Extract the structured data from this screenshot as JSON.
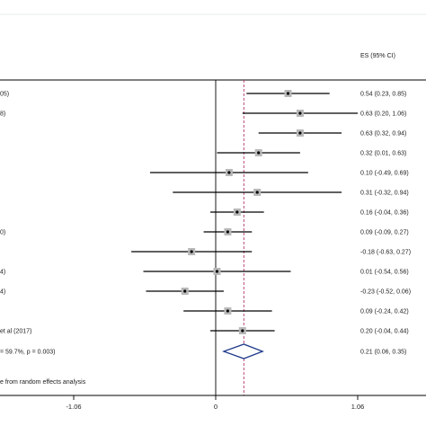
{
  "chart_data": {
    "type": "forest",
    "column_header": "ES (95% CI)",
    "studies": [
      {
        "label": "05)",
        "es": 0.54,
        "lo": 0.23,
        "hi": 0.85,
        "ci_text": "0.54 (0.23, 0.85)"
      },
      {
        "label": "8)",
        "es": 0.63,
        "lo": 0.2,
        "hi": 1.06,
        "ci_text": "0.63 (0.20, 1.06)"
      },
      {
        "label": "",
        "es": 0.63,
        "lo": 0.32,
        "hi": 0.94,
        "ci_text": "0.63 (0.32, 0.94)"
      },
      {
        "label": "",
        "es": 0.32,
        "lo": 0.01,
        "hi": 0.63,
        "ci_text": "0.32 (0.01, 0.63)"
      },
      {
        "label": "",
        "es": 0.1,
        "lo": -0.49,
        "hi": 0.69,
        "ci_text": "0.10 (-0.49, 0.69)"
      },
      {
        "label": "",
        "es": 0.31,
        "lo": -0.32,
        "hi": 0.94,
        "ci_text": "0.31 (-0.32, 0.94)"
      },
      {
        "label": "",
        "es": 0.16,
        "lo": -0.04,
        "hi": 0.36,
        "ci_text": "0.16 (-0.04, 0.36)"
      },
      {
        "label": "0)",
        "es": 0.09,
        "lo": -0.09,
        "hi": 0.27,
        "ci_text": "0.09 (-0.09, 0.27)"
      },
      {
        "label": "",
        "es": -0.18,
        "lo": -0.63,
        "hi": 0.27,
        "ci_text": "-0.18 (-0.63, 0.27)"
      },
      {
        "label": "4)",
        "es": 0.01,
        "lo": -0.54,
        "hi": 0.56,
        "ci_text": "0.01 (-0.54, 0.56)"
      },
      {
        "label": "4)",
        "es": -0.23,
        "lo": -0.52,
        "hi": 0.06,
        "ci_text": "-0.23 (-0.52, 0.06)"
      },
      {
        "label": "",
        "es": 0.09,
        "lo": -0.24,
        "hi": 0.42,
        "ci_text": "0.09 (-0.24, 0.42)"
      },
      {
        "label": "et al (2017)",
        "es": 0.2,
        "lo": -0.04,
        "hi": 0.44,
        "ci_text": "0.20 (-0.04, 0.44)"
      }
    ],
    "overall": {
      "label": "= 59.7%, p = 0.003)",
      "es": 0.21,
      "lo": 0.06,
      "hi": 0.35,
      "ci_text": "0.21 (0.06, 0.35)"
    },
    "footnote": "e from random effects analysis",
    "x_ticks": [
      {
        "value": -1.06,
        "label": "-1.06"
      },
      {
        "value": 0,
        "label": "0"
      },
      {
        "value": 1.06,
        "label": "1.06"
      }
    ],
    "xlim": [
      -1.06,
      1.06
    ],
    "null_line": 0,
    "pooled_line": 0.21,
    "colors": {
      "diamond": "#1f3a8a",
      "pooled_line": "#b0306a",
      "marker": "#b8b8b8",
      "lines": "#000000"
    }
  }
}
